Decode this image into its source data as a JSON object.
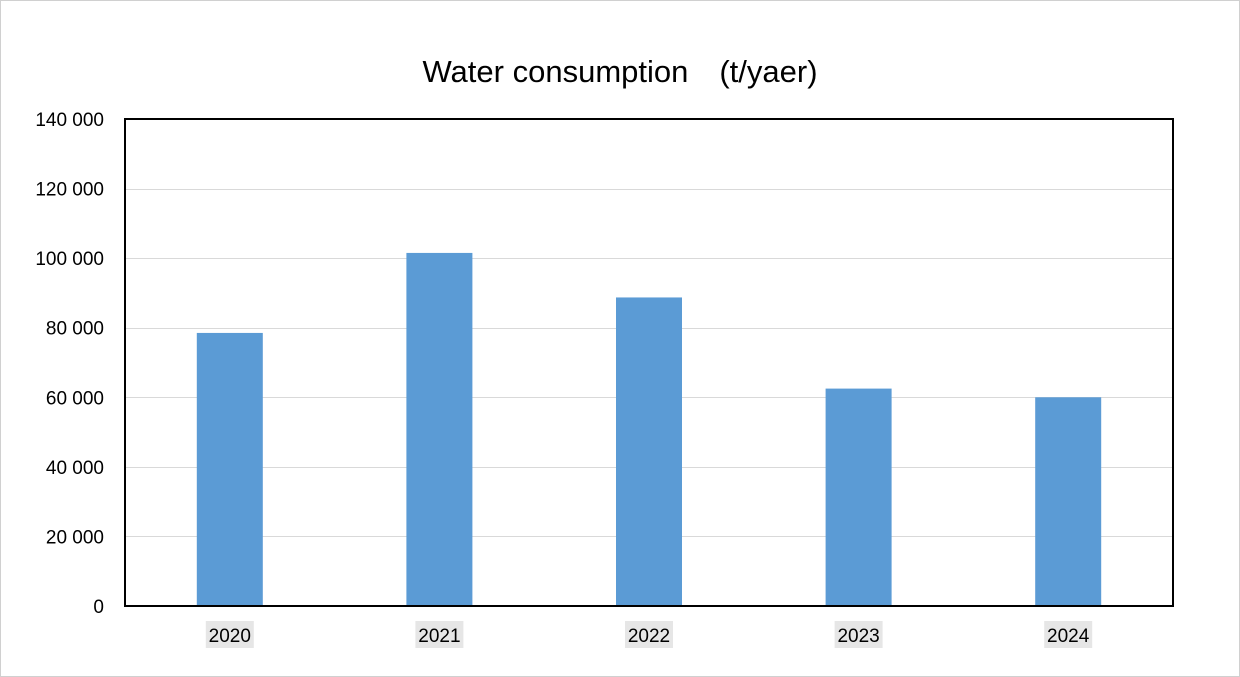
{
  "chart_data": {
    "type": "bar",
    "title": "Water consumption　(t/yaer)",
    "categories": [
      "2020",
      "2021",
      "2022",
      "2023",
      "2024"
    ],
    "values": [
      78500,
      101500,
      88700,
      62500,
      60000
    ],
    "ylim": [
      0,
      140000
    ],
    "yticks": [
      0,
      20000,
      40000,
      60000,
      80000,
      100000,
      120000,
      140000
    ],
    "ytick_labels": [
      "0",
      "20 000",
      "40 000",
      "60 000",
      "80 000",
      "100 000",
      "120 000",
      "140 000"
    ],
    "xlabel": "",
    "ylabel": "",
    "grid": true,
    "bar_color": "#5b9bd5",
    "gridline_color": "#d9d9d9",
    "category_label_highlight": "#e6e6e6"
  }
}
